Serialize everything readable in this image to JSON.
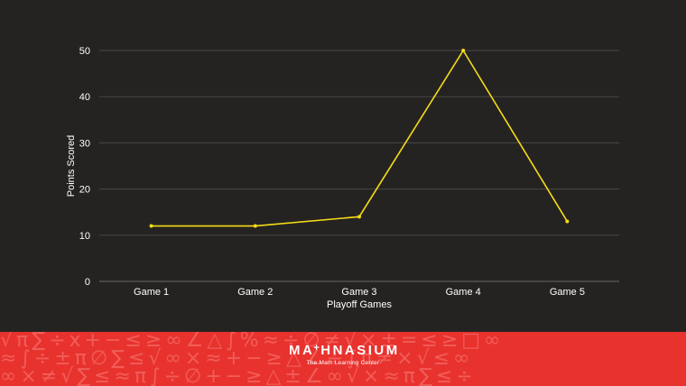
{
  "chart_data": {
    "type": "line",
    "categories": [
      "Game 1",
      "Game 2",
      "Game 3",
      "Game 4",
      "Game 5"
    ],
    "series": [
      {
        "values": [
          12,
          12,
          14,
          50,
          13
        ],
        "color": "#f5dc16"
      }
    ],
    "xlabel": "Playoff Games",
    "ylabel": "Points Scored",
    "ylim": [
      0,
      50
    ],
    "yticks": [
      0,
      10,
      20,
      30,
      40,
      50
    ],
    "grid": true,
    "legend": "none"
  },
  "footer": {
    "logo_word_left": "MA",
    "logo_plus": "+",
    "logo_word_right": "HNASIUM",
    "tagline": "The Math Learning Center",
    "pattern_icons": "math-symbols-pattern",
    "band_color": "#e8322e"
  },
  "colors": {
    "background": "#252322",
    "line": "#f5dc16"
  }
}
